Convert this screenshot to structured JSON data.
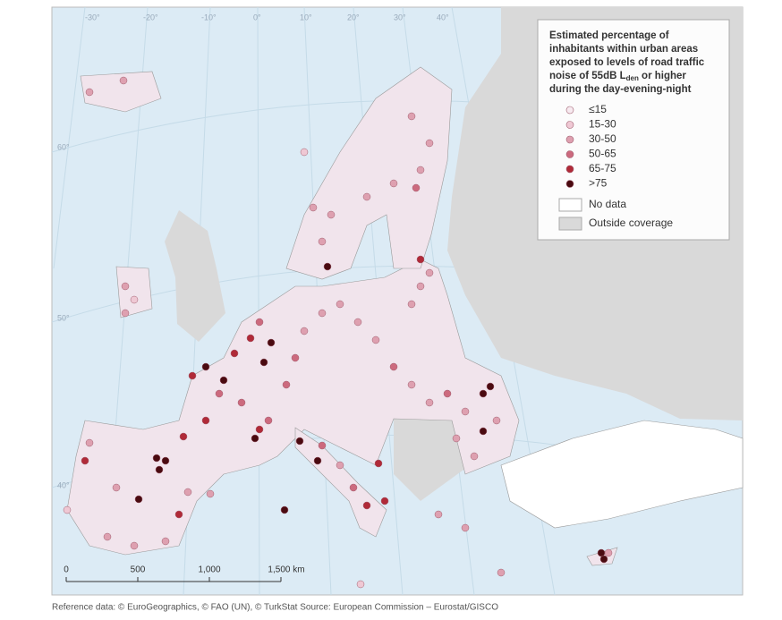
{
  "map": {
    "legend": {
      "title": {
        "line1": "Estimated percentage of",
        "line2": "inhabitants within urban areas",
        "line3": "exposed to levels of road traffic",
        "line4_start": "noise of 55dB L",
        "subscript": "den",
        "line4_end": " or higher",
        "line5": "during the day-evening-night"
      },
      "items": [
        {
          "label": "≤15",
          "color": "#f7eaf0"
        },
        {
          "label": "15-30",
          "color": "#efc8d4"
        },
        {
          "label": "30-50",
          "color": "#dea0b0"
        },
        {
          "label": "50-65",
          "color": "#cc6a7e"
        },
        {
          "label": "65-75",
          "color": "#b02a38"
        },
        {
          "label": ">75",
          "color": "#4a0a10"
        }
      ],
      "areas": [
        {
          "label": "No data",
          "color": "#ffffff"
        },
        {
          "label": "Outside coverage",
          "color": "#d9d9d9"
        }
      ]
    },
    "scale_bar": [
      "0",
      "500",
      "1,000",
      "1,500 km"
    ],
    "graticule_labels": [
      "-30°",
      "-20°",
      "-10°",
      "0°",
      "10°",
      "20°",
      "30°",
      "40°",
      "60°",
      "50°",
      "40°"
    ],
    "footer": "Reference data: © EuroGeographics, © FAO (UN), © TurkStat Source: European Commission – Eurostat/GISCO"
  }
}
